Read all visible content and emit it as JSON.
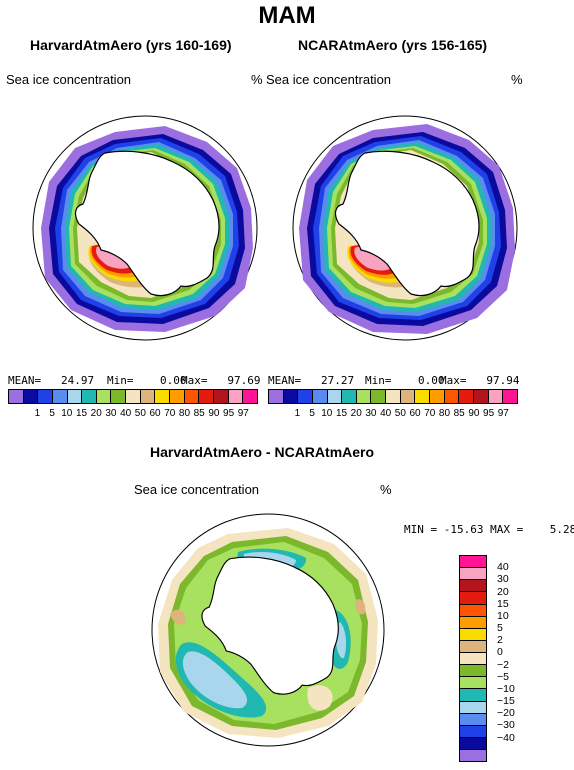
{
  "title": "MAM",
  "panels": [
    {
      "name": "HarvardAtmAero (yrs 160-169)",
      "variable": "Sea ice concentration",
      "units": "%",
      "mean": "MEAN=   24.97",
      "min": "Min=    0.00",
      "max": "Max=   97.69"
    },
    {
      "name": "NCARAtmAero (yrs 156-165)",
      "variable": "Sea ice concentration",
      "units": "%",
      "mean": "MEAN=   27.27",
      "min": "Min=    0.00",
      "max": "Max=   97.94"
    }
  ],
  "concentration_colorbar": {
    "colors": [
      "#9b6fe0",
      "#0a0a9f",
      "#2040e8",
      "#5a8cf0",
      "#a8d6ec",
      "#20b8b0",
      "#a8e060",
      "#7cb82c",
      "#f4e4c0",
      "#dcb47c",
      "#f8dc00",
      "#ff9c00",
      "#ff5400",
      "#e41c10",
      "#b4141c",
      "#f8a4c0",
      "#ff1493"
    ],
    "labels": [
      "1",
      "5",
      "10",
      "15",
      "20",
      "30",
      "40",
      "50",
      "60",
      "70",
      "80",
      "85",
      "90",
      "95",
      "97"
    ]
  },
  "difference": {
    "title": "HarvardAtmAero - NCARAtmAero",
    "variable": "Sea ice concentration",
    "units": "%",
    "minmax": "MIN = -15.63 MAX =    5.28",
    "colorbar": {
      "colors_top_to_bottom": [
        "#ff1493",
        "#f8a4c0",
        "#b4141c",
        "#e41c10",
        "#ff5400",
        "#ff9c00",
        "#f8dc00",
        "#dcb47c",
        "#f4e4c0",
        "#7cb82c",
        "#a8e060",
        "#20b8b0",
        "#a8d6ec",
        "#5a8cf0",
        "#2040e8",
        "#0a0a9f",
        "#9b6fe0"
      ],
      "labels_top_to_bottom": [
        "40",
        "30",
        "20",
        "15",
        "10",
        "5",
        "2",
        "0",
        "−2",
        "−5",
        "−10",
        "−15",
        "−20",
        "−30",
        "−40"
      ]
    }
  }
}
